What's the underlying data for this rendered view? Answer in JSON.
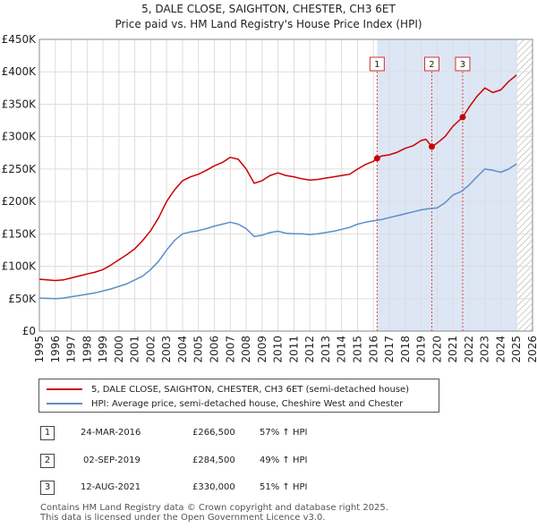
{
  "chart_data": {
    "type": "line",
    "title": "5, DALE CLOSE, SAIGHTON, CHESTER, CH3 6ET",
    "subtitle": "Price paid vs. HM Land Registry's House Price Index (HPI)",
    "xlabel": "",
    "ylabel": "",
    "xlim": [
      1995,
      2026
    ],
    "ylim": [
      0,
      450000
    ],
    "x_ticks": [
      "1995",
      "1996",
      "1997",
      "1998",
      "1999",
      "2000",
      "2001",
      "2002",
      "2003",
      "2004",
      "2005",
      "2006",
      "2007",
      "2008",
      "2009",
      "2010",
      "2011",
      "2012",
      "2013",
      "2014",
      "2015",
      "2016",
      "2017",
      "2018",
      "2019",
      "2020",
      "2021",
      "2022",
      "2023",
      "2024",
      "2025",
      "2026"
    ],
    "y_ticks": [
      {
        "value": 0,
        "label": "£0"
      },
      {
        "value": 50000,
        "label": "£50K"
      },
      {
        "value": 100000,
        "label": "£100K"
      },
      {
        "value": 150000,
        "label": "£150K"
      },
      {
        "value": 200000,
        "label": "£200K"
      },
      {
        "value": 250000,
        "label": "£250K"
      },
      {
        "value": 300000,
        "label": "£300K"
      },
      {
        "value": 350000,
        "label": "£350K"
      },
      {
        "value": 400000,
        "label": "£400K"
      },
      {
        "value": 450000,
        "label": "£450K"
      }
    ],
    "grid": true,
    "shaded_ranges": [
      {
        "from": 2016.23,
        "to": 2025.0,
        "color": "#dde6f5"
      }
    ],
    "hatched_ranges": [
      {
        "from": 2025.0,
        "to": 2026.0
      }
    ],
    "series": [
      {
        "name": "5, DALE CLOSE, SAIGHTON, CHESTER, CH3 6ET (semi-detached house)",
        "color": "#cc0000",
        "x": [
          1995.0,
          1995.5,
          1996.0,
          1996.5,
          1997.0,
          1997.5,
          1998.0,
          1998.5,
          1999.0,
          1999.5,
          2000.0,
          2000.5,
          2001.0,
          2001.5,
          2002.0,
          2002.5,
          2003.0,
          2003.5,
          2004.0,
          2004.5,
          2005.0,
          2005.5,
          2006.0,
          2006.5,
          2007.0,
          2007.5,
          2008.0,
          2008.5,
          2009.0,
          2009.5,
          2010.0,
          2010.5,
          2011.0,
          2011.5,
          2012.0,
          2012.5,
          2013.0,
          2013.5,
          2014.0,
          2014.5,
          2015.0,
          2015.5,
          2016.0,
          2016.23,
          2016.5,
          2017.0,
          2017.5,
          2018.0,
          2018.5,
          2019.0,
          2019.3,
          2019.67,
          2020.0,
          2020.5,
          2021.0,
          2021.3,
          2021.61,
          2022.0,
          2022.5,
          2023.0,
          2023.5,
          2024.0,
          2024.5,
          2025.0
        ],
        "values": [
          80000,
          79000,
          78000,
          79000,
          82000,
          85000,
          88000,
          91000,
          95000,
          102000,
          110000,
          118000,
          127000,
          140000,
          155000,
          175000,
          200000,
          218000,
          232000,
          238000,
          242000,
          248000,
          255000,
          260000,
          268000,
          265000,
          250000,
          228000,
          232000,
          240000,
          244000,
          240000,
          238000,
          235000,
          233000,
          234000,
          236000,
          238000,
          240000,
          242000,
          250000,
          257000,
          262000,
          266500,
          270000,
          272000,
          276000,
          282000,
          286000,
          294000,
          296000,
          284500,
          290000,
          300000,
          316000,
          323000,
          330000,
          345000,
          362000,
          375000,
          368000,
          372000,
          385000,
          395000
        ]
      },
      {
        "name": "HPI: Average price, semi-detached house, Cheshire West and Chester",
        "color": "#5b8ec9",
        "x": [
          1995.0,
          1995.5,
          1996.0,
          1996.5,
          1997.0,
          1997.5,
          1998.0,
          1998.5,
          1999.0,
          1999.5,
          2000.0,
          2000.5,
          2001.0,
          2001.5,
          2002.0,
          2002.5,
          2003.0,
          2003.5,
          2004.0,
          2004.5,
          2005.0,
          2005.5,
          2006.0,
          2006.5,
          2007.0,
          2007.5,
          2008.0,
          2008.5,
          2009.0,
          2009.5,
          2010.0,
          2010.5,
          2011.0,
          2011.5,
          2012.0,
          2012.5,
          2013.0,
          2013.5,
          2014.0,
          2014.5,
          2015.0,
          2015.5,
          2016.0,
          2016.5,
          2017.0,
          2017.5,
          2018.0,
          2018.5,
          2019.0,
          2019.5,
          2020.0,
          2020.5,
          2021.0,
          2021.5,
          2022.0,
          2022.5,
          2023.0,
          2023.5,
          2024.0,
          2024.5,
          2025.0
        ],
        "values": [
          51000,
          50500,
          50000,
          51000,
          53000,
          55000,
          57000,
          59000,
          62000,
          65000,
          69000,
          73000,
          79000,
          85000,
          95000,
          108000,
          125000,
          140000,
          150000,
          153000,
          155000,
          158000,
          162000,
          165000,
          168000,
          165000,
          158000,
          146000,
          148000,
          152000,
          154000,
          151000,
          150000,
          150000,
          149000,
          150000,
          152000,
          154000,
          157000,
          160000,
          165000,
          168000,
          170000,
          172000,
          175000,
          178000,
          181000,
          184000,
          187000,
          189000,
          190000,
          198000,
          210000,
          215000,
          225000,
          238000,
          250000,
          248000,
          245000,
          250000,
          258000
        ]
      }
    ],
    "markers": [
      {
        "label": "1",
        "x": 2016.23,
        "y": 266500
      },
      {
        "label": "2",
        "x": 2019.67,
        "y": 284500
      },
      {
        "label": "3",
        "x": 2021.61,
        "y": 330000
      }
    ],
    "legend_position": "bottom"
  },
  "legend": {
    "property_label": "5, DALE CLOSE, SAIGHTON, CHESTER, CH3 6ET (semi-detached house)",
    "hpi_label": "HPI: Average price, semi-detached house, Cheshire West and Chester",
    "property_color": "#cc0000",
    "hpi_color": "#5b8ec9"
  },
  "transactions": [
    {
      "num": "1",
      "date": "24-MAR-2016",
      "price": "£266,500",
      "pct": "57% ↑ HPI"
    },
    {
      "num": "2",
      "date": "02-SEP-2019",
      "price": "£284,500",
      "pct": "49% ↑ HPI"
    },
    {
      "num": "3",
      "date": "12-AUG-2021",
      "price": "£330,000",
      "pct": "51% ↑ HPI"
    }
  ],
  "footer": {
    "line1": "Contains HM Land Registry data © Crown copyright and database right 2025.",
    "line2": "This data is licensed under the Open Government Licence v3.0."
  }
}
